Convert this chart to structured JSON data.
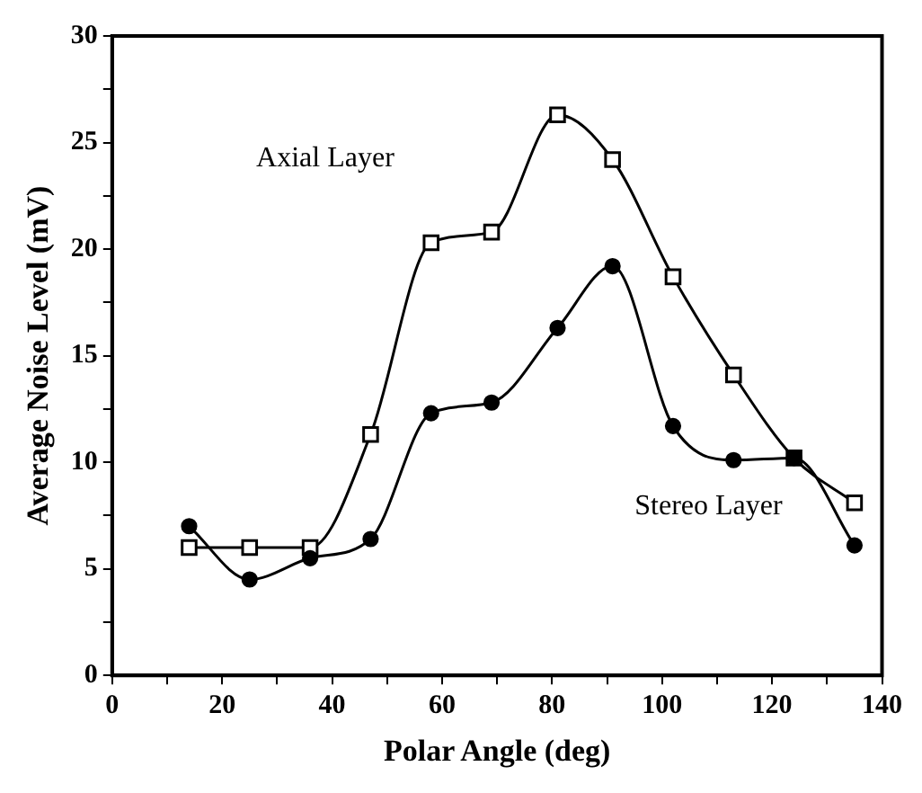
{
  "chart_data": {
    "type": "line",
    "xlabel": "Polar Angle (deg)",
    "ylabel": "Average Noise Level (mV)",
    "xlim": [
      0,
      140
    ],
    "ylim": [
      0,
      30
    ],
    "xticks": [
      0,
      {
        "value": 10,
        "label": null
      },
      20,
      {
        "value": 30,
        "label": null
      },
      40,
      {
        "value": 50,
        "label": null
      },
      60,
      {
        "value": 70,
        "label": null
      },
      80,
      {
        "value": 90,
        "label": null
      },
      100,
      {
        "value": 110,
        "label": null
      },
      120,
      {
        "value": 130,
        "label": null
      },
      140
    ],
    "yticks": [
      0,
      {
        "value": 2.5,
        "label": null
      },
      5,
      {
        "value": 7.5,
        "label": null
      },
      10,
      {
        "value": 12.5,
        "label": null
      },
      15,
      {
        "value": 17.5,
        "label": null
      },
      20,
      {
        "value": 22.5,
        "label": null
      },
      25,
      {
        "value": 27.5,
        "label": null
      },
      30
    ],
    "grid": false,
    "legend": false,
    "line_style": "solid",
    "series": [
      {
        "name": "Axial Layer",
        "color": "#000000",
        "marker": "square",
        "x": [
          14,
          25,
          36,
          47,
          58,
          69,
          81,
          91,
          102,
          113,
          124,
          135
        ],
        "values": [
          6,
          6,
          6,
          11.3,
          20.3,
          20.8,
          26.3,
          24.2,
          18.7,
          14.1,
          10.2,
          8.1
        ]
      },
      {
        "name": "Stereo Layer",
        "color": "#000000",
        "marker": "circle",
        "x": [
          14,
          25,
          36,
          47,
          58,
          69,
          81,
          91,
          102,
          113,
          124,
          135
        ],
        "values": [
          7,
          4.5,
          5.5,
          6.4,
          12.3,
          12.8,
          16.3,
          19.2,
          11.7,
          10.1,
          10.2,
          6.1
        ]
      }
    ]
  }
}
